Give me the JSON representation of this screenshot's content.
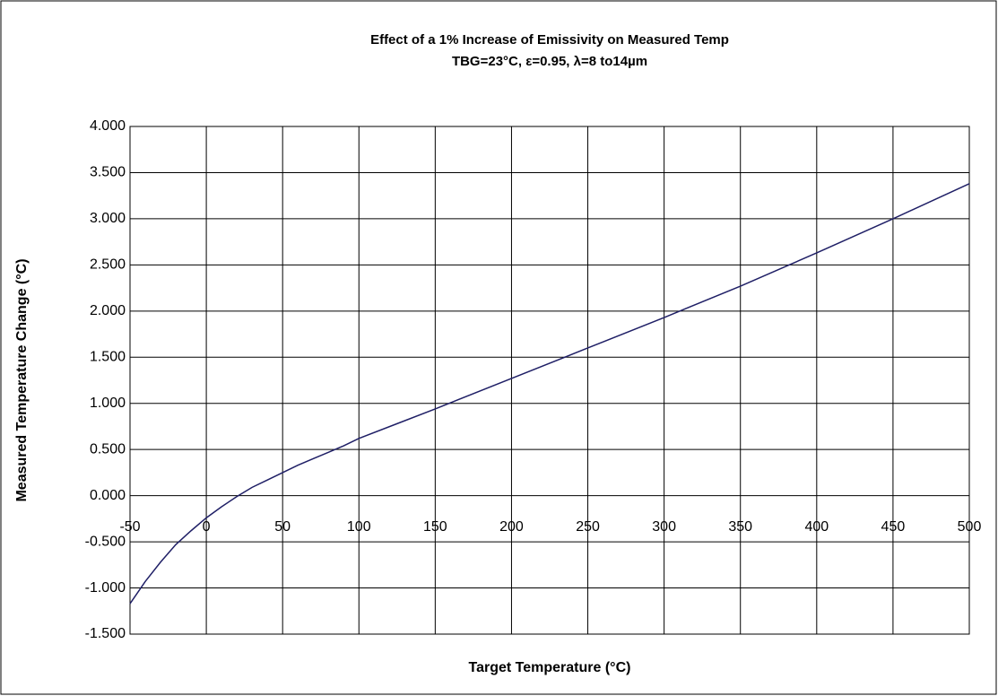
{
  "chart_data": {
    "type": "line",
    "title": "Effect of a 1% Increase of Emissivity on Measured Temp",
    "subtitle": "TBG=23°C, ε=0.95, λ=8 to14µm",
    "x_label": "Target Temperature (°C)",
    "y_label": "Measured Temperature Change (°C)",
    "x": [
      -50,
      -40,
      -30,
      -20,
      -10,
      0,
      10,
      20,
      30,
      40,
      50,
      60,
      70,
      80,
      90,
      100,
      125,
      150,
      200,
      250,
      300,
      350,
      400,
      450,
      500
    ],
    "series": [
      {
        "name": "Measured Temperature Change",
        "color": "#1f1f66",
        "values": [
          -1.17,
          -0.93,
          -0.72,
          -0.53,
          -0.38,
          -0.24,
          -0.12,
          -0.01,
          0.09,
          0.17,
          0.25,
          0.33,
          0.4,
          0.47,
          0.54,
          0.62,
          0.78,
          0.94,
          1.27,
          1.6,
          1.93,
          2.27,
          2.63,
          3.0,
          3.38
        ]
      }
    ],
    "xlim": [
      -50,
      500
    ],
    "xticks": [
      -50,
      0,
      50,
      100,
      150,
      200,
      250,
      300,
      350,
      400,
      450,
      500
    ],
    "ylim": [
      -1.5,
      4
    ],
    "yticks": [
      {
        "value": -1.5,
        "label": "-1.500"
      },
      {
        "value": -1,
        "label": "-1.000"
      },
      {
        "value": -0.5,
        "label": "-0.500"
      },
      {
        "value": 0,
        "label": "0.000"
      },
      {
        "value": 0.5,
        "label": "0.500"
      },
      {
        "value": 1,
        "label": "1.000"
      },
      {
        "value": 1.5,
        "label": "1.500"
      },
      {
        "value": 2,
        "label": "2.000"
      },
      {
        "value": 2.5,
        "label": "2.500"
      },
      {
        "value": 3,
        "label": "3.000"
      },
      {
        "value": 3.5,
        "label": "3.500"
      },
      {
        "value": 4,
        "label": "4.000"
      }
    ],
    "grid": true
  }
}
